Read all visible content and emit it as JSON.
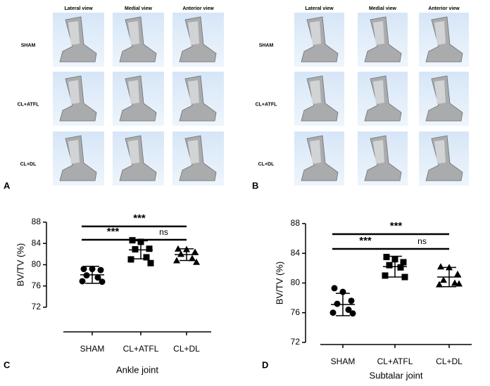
{
  "panels": [
    {
      "letter": "A",
      "views": [
        "Lateral view",
        "Medial view",
        "Anterior view"
      ],
      "rows": [
        "SHAM",
        "CL+ATFL",
        "CL+DL"
      ]
    },
    {
      "letter": "B",
      "views": [
        "Lateral view",
        "Medial view",
        "Anterior view"
      ],
      "rows": [
        "SHAM",
        "CL+ATFL",
        "CL+DL"
      ]
    }
  ],
  "chart_data": [
    {
      "type": "dot",
      "letter": "C",
      "title": "Ankle joint",
      "ylabel": "BV/TV (%)",
      "categories": [
        "SHAM",
        "CL+ATFL",
        "CL+DL"
      ],
      "markers": [
        "circle",
        "square",
        "triangle"
      ],
      "color": "#000000",
      "points": [
        [
          79.2,
          79.2,
          79.0,
          78.0,
          77.6,
          76.9,
          76.8
        ],
        [
          84.6,
          84.3,
          83.0,
          82.9,
          81.4,
          81.0,
          80.3
        ],
        [
          83.0,
          82.9,
          82.4,
          82.0,
          81.2,
          80.8,
          80.5
        ]
      ],
      "mean": [
        78.1,
        82.8,
        81.9
      ],
      "error": [
        1.6,
        1.7,
        1.1
      ],
      "ylim": [
        72,
        88
      ],
      "yticks": [
        72,
        76,
        80,
        84,
        88
      ],
      "brackets": [
        [
          {
            "text": "***",
            "from": 0,
            "to": 2
          }
        ],
        [
          {
            "text": "***",
            "from": 0,
            "to": 1
          },
          {
            "text": "ns",
            "from": 1,
            "to": 2
          }
        ]
      ]
    },
    {
      "type": "dot",
      "letter": "D",
      "title": "Subtalar joint",
      "ylabel": "BV/TV (%)",
      "categories": [
        "SHAM",
        "CL+ATFL",
        "CL+DL"
      ],
      "markers": [
        "circle",
        "square",
        "triangle"
      ],
      "color": "#000000",
      "points": [
        [
          79.3,
          78.8,
          77.6,
          77.2,
          76.4,
          76.0,
          75.9
        ],
        [
          83.5,
          83.2,
          82.8,
          82.4,
          82.1,
          81.0,
          80.8
        ],
        [
          82.2,
          82.1,
          81.2,
          80.4,
          80.0,
          79.8,
          79.9
        ]
      ],
      "mean": [
        77.1,
        82.2,
        80.8
      ],
      "error": [
        1.5,
        1.4,
        1.3
      ],
      "ylim": [
        72,
        88
      ],
      "yticks": [
        72,
        76,
        80,
        84,
        88
      ],
      "brackets": [
        [
          {
            "text": "***",
            "from": 0,
            "to": 2
          }
        ],
        [
          {
            "text": "***",
            "from": 0,
            "to": 1
          },
          {
            "text": "ns",
            "from": 1,
            "to": 2
          }
        ]
      ]
    }
  ]
}
